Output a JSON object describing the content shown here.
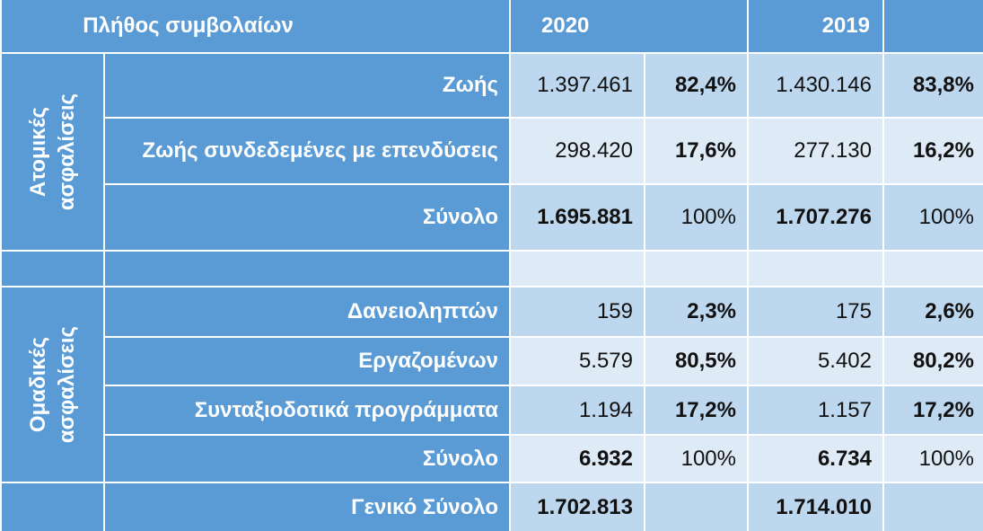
{
  "header": {
    "title": "Πλήθος συμβολαίων",
    "year_a": "2020",
    "year_b": "2019"
  },
  "individual": {
    "label": "Ατομικές\nασφαλίσεις",
    "rows": [
      {
        "label": "Ζωής",
        "v2020": "1.397.461",
        "p2020": "82,4%",
        "v2019": "1.430.146",
        "p2019": "83,8%"
      },
      {
        "label": "Ζωής συνδεδεμένες με επενδύσεις",
        "v2020": "298.420",
        "p2020": "17,6%",
        "v2019": "277.130",
        "p2019": "16,2%"
      },
      {
        "label": "Σύνολο",
        "v2020": "1.695.881",
        "p2020": "100%",
        "v2019": "1.707.276",
        "p2019": "100%"
      }
    ]
  },
  "group": {
    "label": "Ομαδικές\nασφαλίσεις",
    "rows": [
      {
        "label": "Δανειοληπτών",
        "v2020": "159",
        "p2020": "2,3%",
        "v2019": "175",
        "p2019": "2,6%"
      },
      {
        "label": "Εργαζομένων",
        "v2020": "5.579",
        "p2020": "80,5%",
        "v2019": "5.402",
        "p2019": "80,2%"
      },
      {
        "label": "Συνταξιοδοτικά  προγράμματα",
        "v2020": "1.194",
        "p2020": "17,2%",
        "v2019": "1.157",
        "p2019": "17,2%"
      },
      {
        "label": "Σύνολο",
        "v2020": "6.932",
        "p2020": "100%",
        "v2019": "6.734",
        "p2019": "100%"
      }
    ]
  },
  "grand_total": {
    "label": "Γενικό  Σύνολο",
    "v2020": "1.702.813",
    "v2019": "1.714.010"
  },
  "colors": {
    "header_blue": "#5b9bd5",
    "data_dark": "#bdd7ee",
    "data_light": "#deebf7"
  }
}
